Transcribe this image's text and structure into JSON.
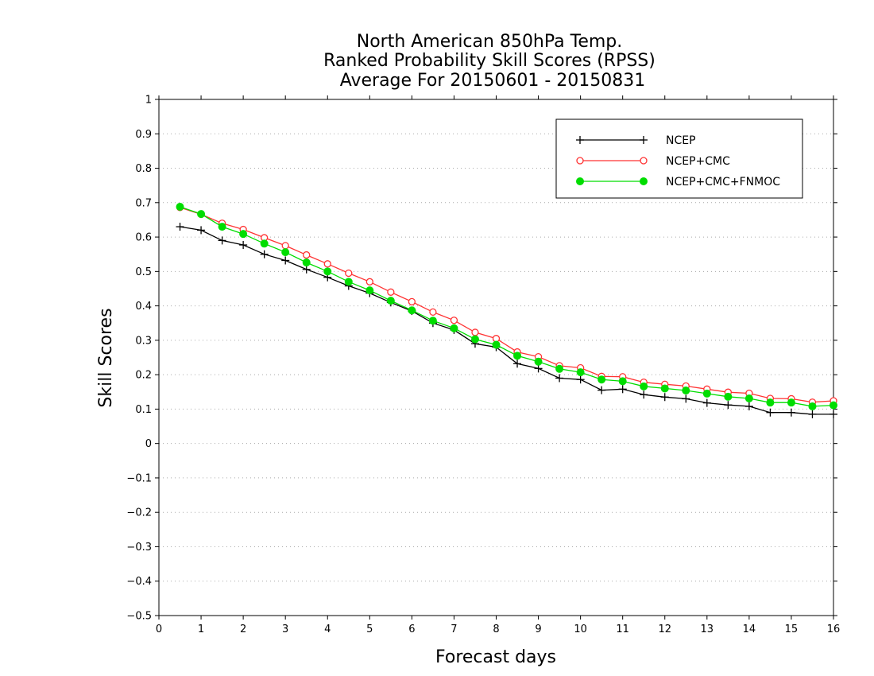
{
  "chart_data": {
    "type": "line",
    "title": [
      "North American 850hPa Temp.",
      "Ranked Probability Skill Scores (RPSS)",
      "Average For 20150601 - 20150831"
    ],
    "xlabel": "Forecast days",
    "ylabel": "Skill Scores",
    "xlim": [
      0,
      16
    ],
    "ylim": [
      -0.5,
      1
    ],
    "x_ticks": [
      "0",
      "1",
      "2",
      "3",
      "4",
      "5",
      "6",
      "7",
      "8",
      "9",
      "10",
      "11",
      "12",
      "13",
      "14",
      "15",
      "16"
    ],
    "y_ticks": [
      "−0.5",
      "−0.4",
      "−0.3",
      "−0.2",
      "−0.1",
      "0",
      "0.1",
      "0.2",
      "0.3",
      "0.4",
      "0.5",
      "0.6",
      "0.7",
      "0.8",
      "0.9",
      "1"
    ],
    "grid": true,
    "legend_position": "top-right",
    "x": [
      0.5,
      1,
      1.5,
      2,
      2.5,
      3,
      3.5,
      4,
      4.5,
      5,
      5.5,
      6,
      6.5,
      7,
      7.5,
      8,
      8.5,
      9,
      9.5,
      10,
      10.5,
      11,
      11.5,
      12,
      12.5,
      13,
      13.5,
      14,
      14.5,
      15,
      15.5,
      16
    ],
    "series": [
      {
        "name": "NCEP",
        "color": "#000000",
        "marker": "plus",
        "values": [
          0.63,
          0.62,
          0.59,
          0.577,
          0.55,
          0.532,
          0.506,
          0.483,
          0.458,
          0.437,
          0.41,
          0.385,
          0.35,
          0.33,
          0.29,
          0.28,
          0.232,
          0.218,
          0.19,
          0.186,
          0.155,
          0.158,
          0.142,
          0.135,
          0.13,
          0.118,
          0.112,
          0.108,
          0.09,
          0.09,
          0.085,
          0.085
        ]
      },
      {
        "name": "NCEP+CMC",
        "color": "#ff3333",
        "marker": "open-circle",
        "values": [
          0.686,
          0.666,
          0.64,
          0.622,
          0.598,
          0.575,
          0.548,
          0.522,
          0.495,
          0.47,
          0.44,
          0.412,
          0.382,
          0.358,
          0.323,
          0.305,
          0.266,
          0.252,
          0.226,
          0.22,
          0.195,
          0.194,
          0.178,
          0.172,
          0.167,
          0.158,
          0.149,
          0.146,
          0.131,
          0.13,
          0.12,
          0.124
        ]
      },
      {
        "name": "NCEP+CMC+FNMOC",
        "color": "#00dd00",
        "marker": "filled-circle",
        "values": [
          0.688,
          0.667,
          0.63,
          0.609,
          0.581,
          0.556,
          0.526,
          0.5,
          0.47,
          0.445,
          0.415,
          0.387,
          0.357,
          0.335,
          0.303,
          0.287,
          0.255,
          0.238,
          0.217,
          0.207,
          0.186,
          0.181,
          0.166,
          0.16,
          0.154,
          0.145,
          0.136,
          0.131,
          0.119,
          0.119,
          0.108,
          0.111
        ]
      }
    ]
  }
}
